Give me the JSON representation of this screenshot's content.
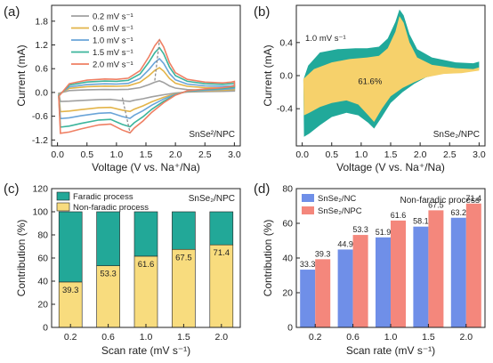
{
  "panels": {
    "a": "(a)",
    "b": "(b)",
    "c": "(c)",
    "d": "(d)"
  },
  "chart_data": [
    {
      "panel": "(a)",
      "type": "line",
      "xlabel": "Voltage (V vs. Na⁺/Na)",
      "ylabel": "Current (mA)",
      "xlim": [
        -0.1,
        3.1
      ],
      "ylim": [
        -1.35,
        2.2
      ],
      "xticks": [
        "0.0",
        "0.5",
        "1.0",
        "1.5",
        "2.0",
        "2.5",
        "3.0"
      ],
      "yticks": [
        "-1.2",
        "-0.6",
        "0.0",
        "0.6",
        "1.2",
        "1.8"
      ],
      "annotation": "SnSe²/NPC",
      "legend_position": "top-left",
      "series": [
        {
          "name": "0.2 mV s⁻¹",
          "color": "#a0a0a0",
          "scale": 0.22
        },
        {
          "name": "0.6 mV s⁻¹",
          "color": "#e3b449",
          "scale": 0.47
        },
        {
          "name": "1.0 mV s⁻¹",
          "color": "#6aa4d8",
          "scale": 0.64
        },
        {
          "name": "1.5 mV s⁻¹",
          "color": "#3cb59c",
          "scale": 0.85
        },
        {
          "name": "2.0 mV s⁻¹",
          "color": "#ef7f63",
          "scale": 1.0
        }
      ],
      "peaks": {
        "anodic": {
          "x": [
            1.65,
            1.73
          ],
          "y": [
            0.3,
            1.33
          ]
        },
        "cathodic": {
          "x": [
            1.1,
            1.23
          ],
          "y": [
            -0.13,
            -1.02
          ]
        }
      },
      "curve_2p0": {
        "upper": [
          [
            0.02,
            -0.1
          ],
          [
            0.2,
            0.22
          ],
          [
            0.5,
            0.31
          ],
          [
            0.8,
            0.34
          ],
          [
            1.0,
            0.33
          ],
          [
            1.2,
            0.36
          ],
          [
            1.4,
            0.55
          ],
          [
            1.55,
            0.9
          ],
          [
            1.65,
            1.18
          ],
          [
            1.73,
            1.33
          ],
          [
            1.8,
            1.15
          ],
          [
            1.9,
            0.75
          ],
          [
            2.0,
            0.5
          ],
          [
            2.2,
            0.33
          ],
          [
            2.5,
            0.26
          ],
          [
            2.8,
            0.24
          ],
          [
            2.95,
            0.26
          ],
          [
            3.0,
            0.28
          ]
        ],
        "lower": [
          [
            3.0,
            0.16
          ],
          [
            2.8,
            0.12
          ],
          [
            2.5,
            0.09
          ],
          [
            2.2,
            0.04
          ],
          [
            2.0,
            -0.07
          ],
          [
            1.8,
            -0.26
          ],
          [
            1.6,
            -0.5
          ],
          [
            1.45,
            -0.72
          ],
          [
            1.3,
            -0.9
          ],
          [
            1.23,
            -1.02
          ],
          [
            1.1,
            -0.95
          ],
          [
            0.9,
            -0.8
          ],
          [
            0.7,
            -0.82
          ],
          [
            0.4,
            -0.92
          ],
          [
            0.2,
            -1.0
          ],
          [
            0.05,
            -1.03
          ],
          [
            0.02,
            -0.1
          ]
        ]
      }
    },
    {
      "panel": "(b)",
      "type": "area",
      "xlabel": "Voltage (V vs. Na⁺/Na)",
      "ylabel": "Current (mA)",
      "xlim": [
        -0.1,
        3.1
      ],
      "ylim": [
        -0.85,
        0.85
      ],
      "xticks": [
        "0.0",
        "0.5",
        "1.0",
        "1.5",
        "2.0",
        "2.5",
        "3.0"
      ],
      "yticks": [
        "-0.4",
        "0.0",
        "0.4"
      ],
      "rate_label": "1.0 mV s⁻¹",
      "percent_label": "61.6%",
      "annotation": "SnSe₂/NPC",
      "colors": {
        "total": "#21a99a",
        "capacitive": "#f6d16b"
      },
      "total": {
        "upper": [
          [
            0.02,
            -0.05
          ],
          [
            0.1,
            0.12
          ],
          [
            0.3,
            0.28
          ],
          [
            0.6,
            0.32
          ],
          [
            0.9,
            0.33
          ],
          [
            1.1,
            0.33
          ],
          [
            1.3,
            0.35
          ],
          [
            1.45,
            0.45
          ],
          [
            1.58,
            0.65
          ],
          [
            1.65,
            0.8
          ],
          [
            1.72,
            0.73
          ],
          [
            1.82,
            0.5
          ],
          [
            1.95,
            0.32
          ],
          [
            2.2,
            0.22
          ],
          [
            2.6,
            0.16
          ],
          [
            2.9,
            0.15
          ],
          [
            3.0,
            0.17
          ]
        ],
        "lower": [
          [
            3.0,
            0.08
          ],
          [
            2.7,
            0.04
          ],
          [
            2.4,
            0.03
          ],
          [
            2.1,
            -0.02
          ],
          [
            1.9,
            -0.1
          ],
          [
            1.7,
            -0.2
          ],
          [
            1.5,
            -0.33
          ],
          [
            1.35,
            -0.5
          ],
          [
            1.22,
            -0.64
          ],
          [
            1.12,
            -0.57
          ],
          [
            0.95,
            -0.48
          ],
          [
            0.75,
            -0.45
          ],
          [
            0.5,
            -0.5
          ],
          [
            0.3,
            -0.6
          ],
          [
            0.12,
            -0.7
          ],
          [
            0.03,
            -0.74
          ],
          [
            0.02,
            -0.05
          ]
        ]
      },
      "capacitive": {
        "upper": [
          [
            0.02,
            -0.04
          ],
          [
            0.2,
            0.08
          ],
          [
            0.5,
            0.16
          ],
          [
            0.8,
            0.2
          ],
          [
            1.1,
            0.22
          ],
          [
            1.3,
            0.24
          ],
          [
            1.45,
            0.33
          ],
          [
            1.58,
            0.53
          ],
          [
            1.65,
            0.72
          ],
          [
            1.72,
            0.64
          ],
          [
            1.82,
            0.4
          ],
          [
            1.95,
            0.22
          ],
          [
            2.2,
            0.13
          ],
          [
            2.6,
            0.09
          ],
          [
            2.9,
            0.08
          ],
          [
            3.0,
            0.1
          ]
        ],
        "lower": [
          [
            3.0,
            0.06
          ],
          [
            2.7,
            0.03
          ],
          [
            2.4,
            0.02
          ],
          [
            2.1,
            -0.02
          ],
          [
            1.9,
            -0.08
          ],
          [
            1.7,
            -0.15
          ],
          [
            1.5,
            -0.25
          ],
          [
            1.35,
            -0.4
          ],
          [
            1.22,
            -0.56
          ],
          [
            1.12,
            -0.48
          ],
          [
            0.95,
            -0.35
          ],
          [
            0.75,
            -0.3
          ],
          [
            0.5,
            -0.33
          ],
          [
            0.3,
            -0.38
          ],
          [
            0.12,
            -0.45
          ],
          [
            0.03,
            -0.48
          ],
          [
            0.02,
            -0.04
          ]
        ]
      }
    },
    {
      "panel": "(c)",
      "type": "bar",
      "stacked": true,
      "xlabel": "Scan rate (mV s⁻¹)",
      "ylabel": "Contribution (%)",
      "ylim": [
        0,
        120
      ],
      "yticks": [
        "0",
        "20",
        "40",
        "60",
        "80",
        "100",
        "120"
      ],
      "annotation": "SnSe₂/NPC",
      "categories": [
        "0.2",
        "0.6",
        "1.0",
        "1.5",
        "2.0"
      ],
      "series": [
        {
          "name": "Faradic process",
          "color": "#22a898",
          "values": [
            60.7,
            46.7,
            38.4,
            32.5,
            28.6
          ]
        },
        {
          "name": "Non-faradic process",
          "color": "#f8dc7e",
          "values": [
            39.3,
            53.3,
            61.6,
            67.5,
            71.4
          ]
        }
      ],
      "labels": [
        "39.3",
        "53.3",
        "61.6",
        "67.5",
        "71.4"
      ]
    },
    {
      "panel": "(d)",
      "type": "bar",
      "xlabel": "Scan rate (mV s⁻¹)",
      "ylabel": "Contribution (%)",
      "ylim": [
        0,
        80
      ],
      "yticks": [
        "0",
        "20",
        "40",
        "60",
        "80"
      ],
      "annotation": "Non-faradic process",
      "categories": [
        "0.2",
        "0.6",
        "1.0",
        "1.5",
        "2.0"
      ],
      "series": [
        {
          "name": "SnSe₂/NC",
          "color": "#6f8fe8",
          "values": [
            33.3,
            44.9,
            51.9,
            58.1,
            63.2
          ],
          "labels": [
            "33.3",
            "44.9",
            "51.9",
            "58.1",
            "63.2"
          ]
        },
        {
          "name": "SnSe₂/NPC",
          "color": "#f4877c",
          "values": [
            39.3,
            53.3,
            61.6,
            67.5,
            71.4
          ],
          "labels": [
            "39.3",
            "53.3",
            "61.6",
            "67.5",
            "71.4"
          ]
        }
      ]
    }
  ]
}
